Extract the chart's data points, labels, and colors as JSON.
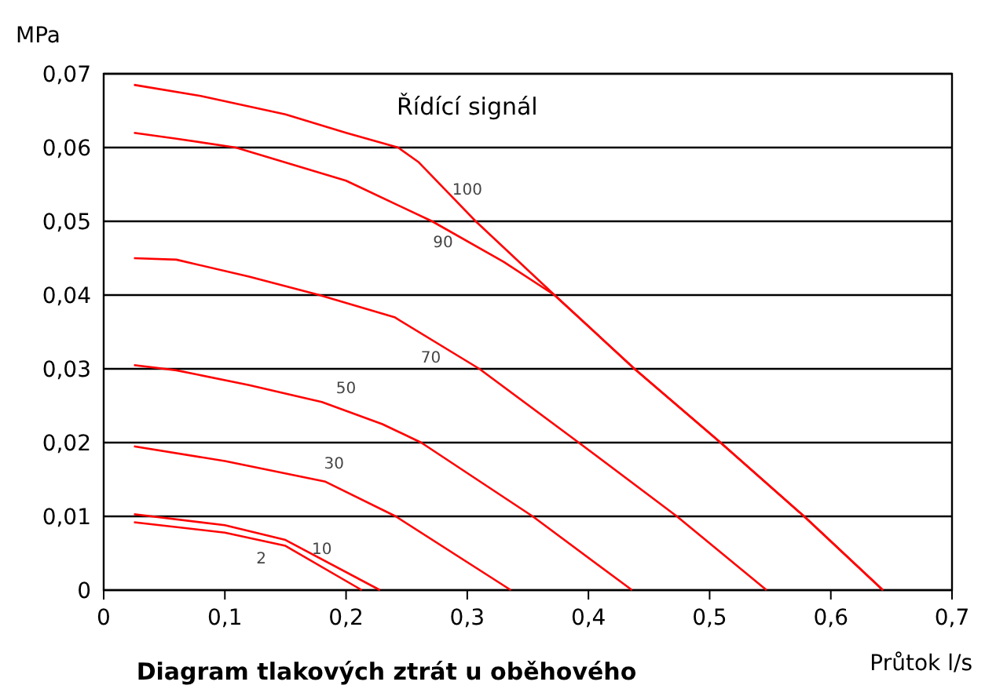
{
  "chart_data": {
    "type": "line",
    "title": "Diagram tlakových ztrát u oběhového",
    "xlabel": "Průtok l/s",
    "ylabel": "MPa",
    "annotations": [
      "Řídící signál"
    ],
    "xlim": [
      0,
      0.7
    ],
    "ylim": [
      0,
      0.07
    ],
    "xticks": [
      0,
      {
        "value": 0.1,
        "label": "0,1"
      },
      {
        "value": 0.2,
        "label": "0,2"
      },
      {
        "value": 0.3,
        "label": "0,3"
      },
      {
        "value": 0.4,
        "label": "0,4"
      },
      {
        "value": 0.5,
        "label": "0,5"
      },
      {
        "value": 0.6,
        "label": "0,6"
      },
      {
        "value": 0.7,
        "label": "0,7"
      }
    ],
    "yticks": [
      0,
      {
        "value": 0.01,
        "label": "0,01"
      },
      {
        "value": 0.02,
        "label": "0,02"
      },
      {
        "value": 0.03,
        "label": "0,03"
      },
      {
        "value": 0.04,
        "label": "0,04"
      },
      {
        "value": 0.05,
        "label": "0,05"
      },
      {
        "value": 0.06,
        "label": "0,06"
      },
      {
        "value": 0.07,
        "label": "0,07"
      }
    ],
    "grid": "y",
    "marker": "none",
    "line_style": "solid",
    "series": [
      {
        "name": "100",
        "color": "#ff0000",
        "x": [
          0.025,
          0.08,
          0.15,
          0.2,
          0.243,
          0.26,
          0.307,
          0.372,
          0.438,
          0.509,
          0.578,
          0.643
        ],
        "values": [
          0.0685,
          0.067,
          0.0645,
          0.062,
          0.06,
          0.058,
          0.05,
          0.04,
          0.03,
          0.02,
          0.01,
          0
        ]
      },
      {
        "name": "90",
        "color": "#ff0000",
        "x": [
          0.025,
          0.06,
          0.109,
          0.2,
          0.271,
          0.33,
          0.372,
          0.438,
          0.509,
          0.578,
          0.643
        ],
        "values": [
          0.062,
          0.0612,
          0.06,
          0.0555,
          0.05,
          0.0445,
          0.04,
          0.03,
          0.02,
          0.01,
          0
        ]
      },
      {
        "name": "70",
        "color": "#ff0000",
        "x": [
          0.025,
          0.06,
          0.12,
          0.178,
          0.24,
          0.31,
          0.392,
          0.473,
          0.547
        ],
        "values": [
          0.045,
          0.0448,
          0.0425,
          0.04,
          0.037,
          0.03,
          0.02,
          0.01,
          0
        ]
      },
      {
        "name": "50",
        "color": "#ff0000",
        "x": [
          0.025,
          0.06,
          0.12,
          0.18,
          0.23,
          0.262,
          0.354,
          0.436
        ],
        "values": [
          0.0305,
          0.0298,
          0.0278,
          0.0255,
          0.0225,
          0.02,
          0.01,
          0
        ]
      },
      {
        "name": "30",
        "color": "#ff0000",
        "x": [
          0.025,
          0.1,
          0.183,
          0.241,
          0.336
        ],
        "values": [
          0.0195,
          0.0175,
          0.0147,
          0.01,
          0
        ]
      },
      {
        "name": "10",
        "color": "#ff0000",
        "x": [
          0.025,
          0.1,
          0.15,
          0.228
        ],
        "values": [
          0.0103,
          0.0088,
          0.0068,
          0
        ]
      },
      {
        "name": "2",
        "color": "#ff0000",
        "x": [
          0.025,
          0.1,
          0.15,
          0.213
        ],
        "values": [
          0.0092,
          0.0078,
          0.006,
          0
        ]
      }
    ]
  }
}
